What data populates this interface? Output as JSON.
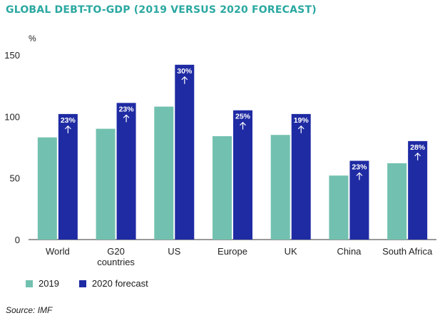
{
  "title": "GLOBAL DEBT-TO-GDP (2019 VERSUS 2020 FORECAST)",
  "source": "Source: IMF",
  "chart_data": {
    "type": "bar",
    "categories": [
      "World",
      "G20 countries",
      "US",
      "Europe",
      "UK",
      "China",
      "South Africa"
    ],
    "category_lines": [
      [
        "World"
      ],
      [
        "G20",
        "countries"
      ],
      [
        "US"
      ],
      [
        "Europe"
      ],
      [
        "UK"
      ],
      [
        "China"
      ],
      [
        "South Africa"
      ]
    ],
    "series": [
      {
        "name": "2019",
        "color": "#72c1b0",
        "values": [
          83,
          90,
          108,
          84,
          85,
          52,
          62
        ]
      },
      {
        "name": "2020 forecast",
        "color": "#1f2ba3",
        "values": [
          102,
          111,
          142,
          105,
          102,
          64,
          80
        ]
      }
    ],
    "data_labels": [
      "23%",
      "23%",
      "30%",
      "25%",
      "19%",
      "23%",
      "28%"
    ],
    "data_label_icon": "arrow-up-icon",
    "ylabel": "%",
    "ylim": [
      0,
      150
    ],
    "yticks": [
      0,
      50,
      100,
      150
    ],
    "legend_position": "bottom-left",
    "grid": false
  }
}
